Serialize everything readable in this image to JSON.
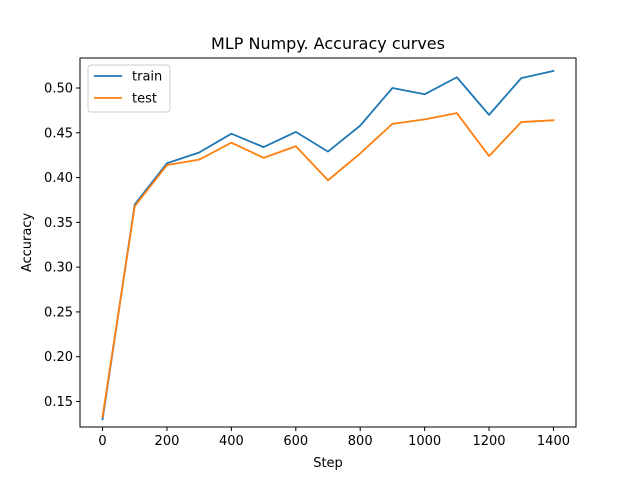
{
  "chart_data": {
    "type": "line",
    "title": "MLP Numpy. Accuracy curves",
    "xlabel": "Step",
    "ylabel": "Accuracy",
    "x": [
      0,
      100,
      200,
      300,
      400,
      500,
      600,
      700,
      800,
      900,
      1000,
      1100,
      1200,
      1300,
      1400
    ],
    "xlim": [
      -70,
      1470
    ],
    "ylim": [
      0.1215,
      0.5335
    ],
    "xticks": [
      0,
      200,
      400,
      600,
      800,
      1000,
      1200,
      1400
    ],
    "yticks": [
      0.15,
      0.2,
      0.25,
      0.3,
      0.35,
      0.4,
      0.45,
      0.5
    ],
    "xtick_labels": [
      "0",
      "200",
      "400",
      "600",
      "800",
      "1000",
      "1200",
      "1400"
    ],
    "ytick_labels": [
      "0.15",
      "0.20",
      "0.25",
      "0.30",
      "0.35",
      "0.40",
      "0.45",
      "0.50"
    ],
    "grid": false,
    "legend_position": "top-left",
    "series": [
      {
        "name": "train",
        "color": "#1f77b4",
        "values": [
          0.13,
          0.37,
          0.416,
          0.428,
          0.449,
          0.434,
          0.451,
          0.429,
          0.458,
          0.5,
          0.493,
          0.512,
          0.47,
          0.511,
          0.519
        ]
      },
      {
        "name": "test",
        "color": "#ff7f0e",
        "values": [
          0.133,
          0.368,
          0.414,
          0.42,
          0.439,
          0.422,
          0.435,
          0.397,
          0.427,
          0.46,
          0.465,
          0.472,
          0.424,
          0.462,
          0.464
        ]
      }
    ]
  }
}
